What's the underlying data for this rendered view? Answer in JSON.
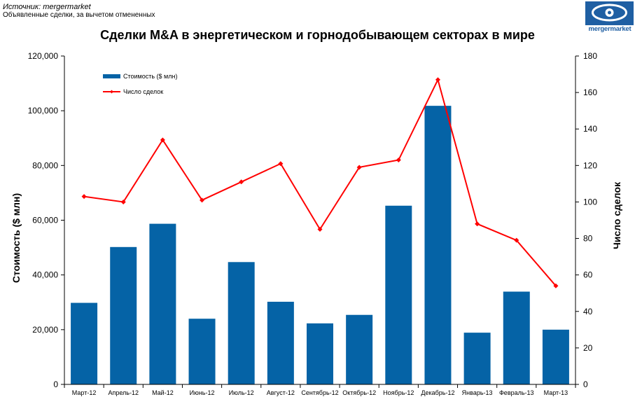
{
  "header": {
    "source": "Источник: mergermarket",
    "note": "Объявленные сделки, за вычетом отмененных",
    "logo_text": "mergermarket"
  },
  "chart_data": {
    "type": "bar",
    "title": "Сделки M&A в энергетическом и горнодобывающем секторах в мире",
    "categories": [
      "Март-12",
      "Апрель-12",
      "Май-12",
      "Июнь-12",
      "Июль-12",
      "Август-12",
      "Сентябрь-12",
      "Октябрь-12",
      "Ноябрь-12",
      "Декабрь-12",
      "Январь-13",
      "Февраль-13",
      "Март-13"
    ],
    "series": [
      {
        "name": "Стоимость ($ млн)",
        "kind": "bar",
        "axis": "left",
        "color": "#0563a6",
        "values": [
          29800,
          50200,
          58700,
          24000,
          44700,
          30200,
          22300,
          25400,
          65300,
          101800,
          18900,
          33900,
          20000
        ]
      },
      {
        "name": "Число сделок",
        "kind": "line",
        "axis": "right",
        "color": "#ff0000",
        "values": [
          103,
          100,
          134,
          101,
          111,
          121,
          85,
          119,
          123,
          167,
          88,
          79,
          54
        ]
      }
    ],
    "ylabel": "Стоимость  ($ млн)",
    "y2label": "Число сделок",
    "ylim": [
      0,
      120000
    ],
    "y2lim": [
      0,
      180
    ],
    "yticks": [
      "0",
      "20,000",
      "40,000",
      "60,000",
      "80,000",
      "100,000",
      "120,000"
    ],
    "y2ticks": [
      "0",
      "20",
      "40",
      "60",
      "80",
      "100",
      "120",
      "140",
      "160",
      "180"
    ],
    "grid": false,
    "legend": "top-left"
  }
}
